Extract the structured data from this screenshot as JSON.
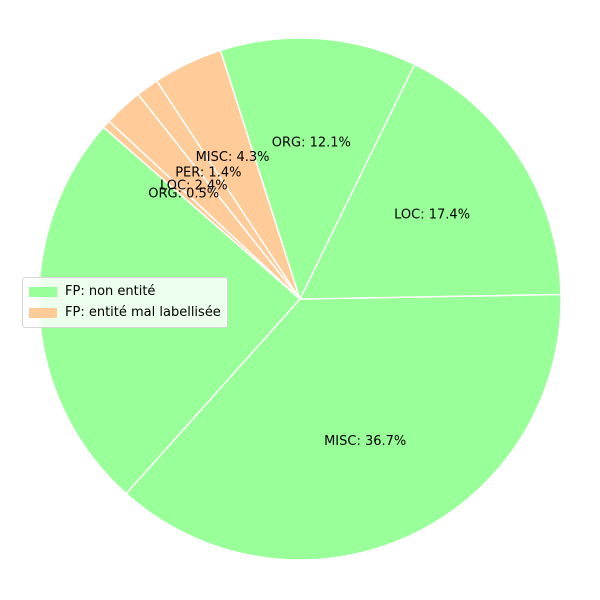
{
  "chart_data": {
    "type": "pie",
    "slices": [
      {
        "label": "MISC: 36.7%",
        "value": 36.7,
        "group": 0
      },
      {
        "label": "",
        "value": 24.7,
        "group": 0
      },
      {
        "label": "ORG: 0.5%",
        "value": 0.5,
        "group": 1
      },
      {
        "label": "LOC: 2.4%",
        "value": 2.4,
        "group": 1
      },
      {
        "label": "PER: 1.4%",
        "value": 1.4,
        "group": 1
      },
      {
        "label": "MISC: 4.3%",
        "value": 4.3,
        "group": 1
      },
      {
        "label": "ORG: 12.1%",
        "value": 12.1,
        "group": 0
      },
      {
        "label": "LOC: 17.4%",
        "value": 17.4,
        "group": 0
      }
    ],
    "legend": [
      {
        "label": "FP: non entité",
        "color": "#99ff99"
      },
      {
        "label": "FP: entité mal labellisée",
        "color": "#ffcc99"
      }
    ],
    "colors": [
      "#99ff99",
      "#ffcc99"
    ],
    "legend_position": "center-left",
    "edge_color": "#ffffff"
  }
}
